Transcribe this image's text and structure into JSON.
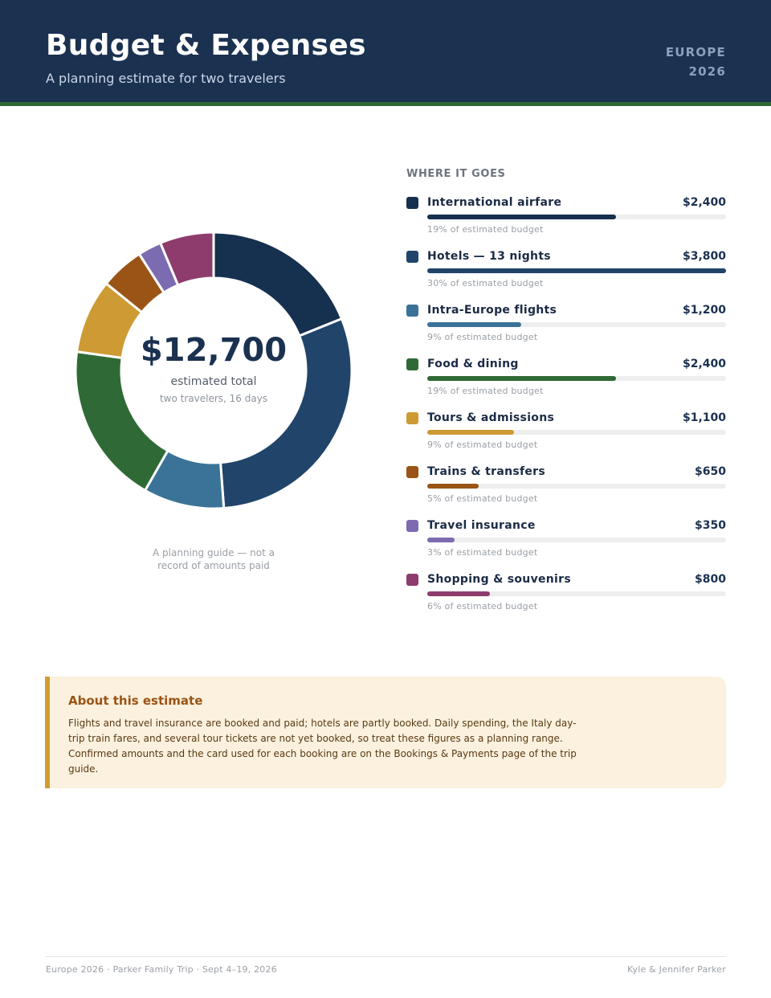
{
  "header": {
    "title": "Budget & Expenses",
    "subtitle": "A planning estimate for two travelers",
    "tag_line1": "EUROPE",
    "tag_line2": "2026",
    "bg_color": "#1b3150",
    "stripe_color": "#2f6a36"
  },
  "summary": {
    "total": "$12,700",
    "label": "estimated total",
    "sub": "two travelers, 16 days",
    "note": "A planning guide — not a record of amounts paid"
  },
  "breakdown": {
    "heading": "WHERE IT GOES"
  },
  "chart_data": {
    "type": "pie",
    "variant": "donut",
    "categories": [
      "International airfare",
      "Hotels — 13 nights",
      "Intra-Europe flights",
      "Food & dining",
      "Tours & admissions",
      "Trains & transfers",
      "Travel insurance",
      "Shopping & souvenirs"
    ],
    "values": [
      2400,
      3800,
      1200,
      2400,
      1100,
      650,
      350,
      800
    ],
    "amounts": [
      "$2,400",
      "$3,800",
      "$1,200",
      "$2,400",
      "$1,100",
      "$650",
      "$350",
      "$800"
    ],
    "percent_labels": [
      "19% of estimated budget",
      "30% of estimated budget",
      "9% of estimated budget",
      "19% of estimated budget",
      "9% of estimated budget",
      "5% of estimated budget",
      "3% of estimated budget",
      "6% of estimated budget"
    ],
    "colors": [
      "#16304f",
      "#21446b",
      "#3a7397",
      "#2f6a36",
      "#cd9a33",
      "#9a5415",
      "#7c6bb0",
      "#8e3c6e"
    ]
  },
  "note_box": {
    "title": "About this estimate",
    "body": "Flights and travel insurance are booked and paid; hotels are partly booked. Daily spending, the Italy day-trip train fares, and several tour tickets are not yet booked, so treat these figures as a planning range. Confirmed amounts and the card used for each booking are on the Bookings & Payments page of the trip guide."
  },
  "footer": {
    "left": "Europe 2026 · Parker Family Trip · Sept 4–19, 2026",
    "right": "Kyle & Jennifer Parker"
  }
}
